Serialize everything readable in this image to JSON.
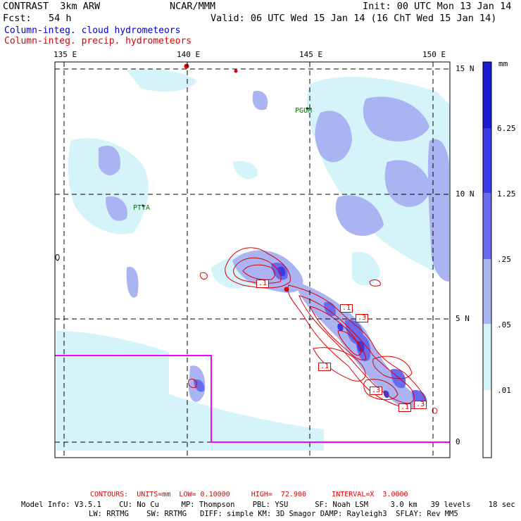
{
  "header": {
    "title": "CONTRAST  3km ARW",
    "fcst": "Fcst:   54 h",
    "center": "NCAR/MMM",
    "init": "Init: 00 UTC Mon 13 Jan 14",
    "valid": "Valid: 06 UTC Wed 15 Jan 14 (16 ChT Wed 15 Jan 14)"
  },
  "legend": {
    "cloud": "Column-integ. cloud hydrometeors",
    "precip": "Column-integ. precip. hydrometeors",
    "cloud_color": "#0000cc",
    "precip_color": "#e00000"
  },
  "map": {
    "lon_labels": [
      "135 E",
      "140 E",
      "145 E",
      "150 E"
    ],
    "lat_labels": [
      "15 N",
      "10 N",
      "5 N",
      "0"
    ],
    "stations": [
      "PGUM",
      "PTYA"
    ],
    "contour_labels": [
      ".1",
      ".1",
      ".3",
      ".1",
      ".3",
      ".1",
      ".3"
    ],
    "box_color": "#ff00ff"
  },
  "colorbar": {
    "units": "mm",
    "levels": [
      "6.25",
      "1.25",
      ".25",
      ".05",
      ".01"
    ],
    "colors": [
      "#1a1ad4",
      "#3a3ae8",
      "#6a6af0",
      "#aab4f2",
      "#d4f4fa",
      "#ffffff"
    ]
  },
  "footer": {
    "contours": "CONTOURS:  UNITS=mm  LOW= 0.10000     HIGH=  72.900      INTERVAL=X  3.0000",
    "model1": "Model Info: V3.5.1    CU: No Cu     MP: Thompson    PBL: YSU      SF: Noah LSM     3.0 km   39 levels    18 sec",
    "model2": "LW: RRTMG    SW: RRTMG   DIFF: simple KM: 3D Smagor DAMP: Rayleigh3  SFLAY: Rev MM5"
  }
}
